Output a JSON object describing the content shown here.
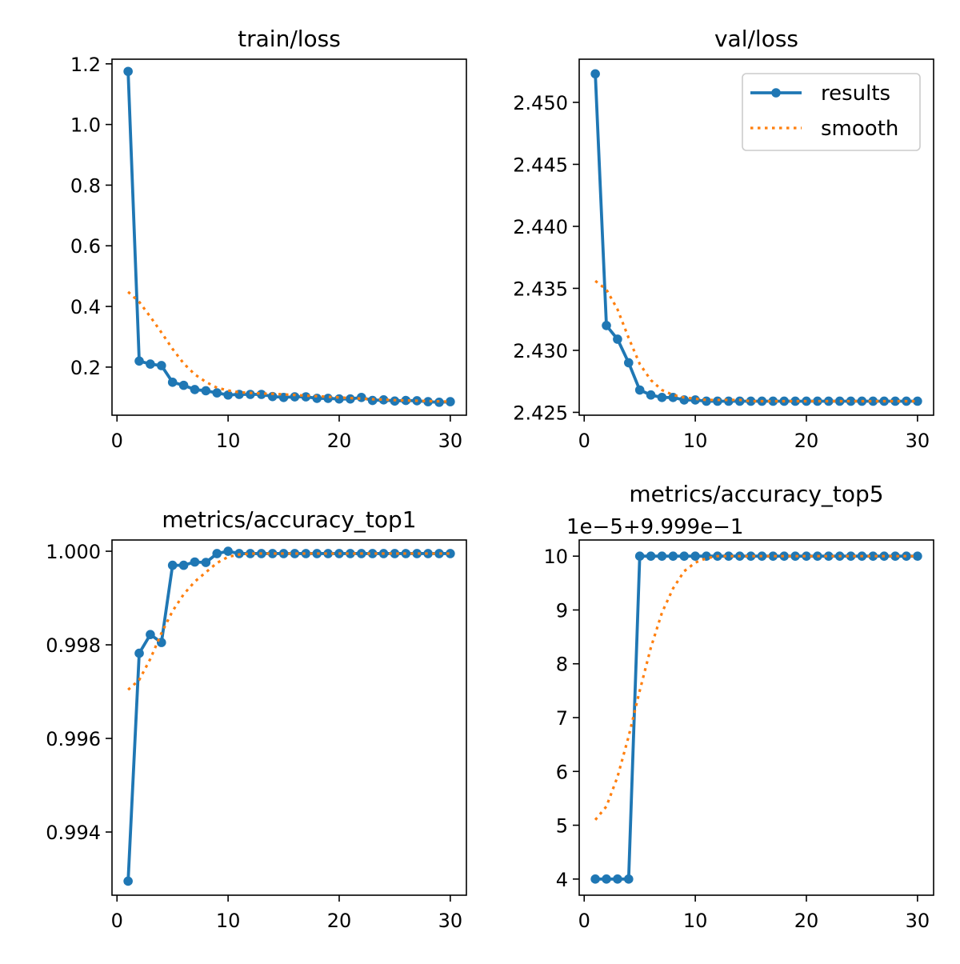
{
  "colors": {
    "results": "#1f77b4",
    "smooth": "#ff7f0e",
    "axes": "#000000",
    "background": "#ffffff"
  },
  "legend": {
    "placement": "upper-right",
    "entries": [
      "results",
      "smooth"
    ]
  },
  "chart_data": [
    {
      "type": "line",
      "title": "train/loss",
      "xlabel": "",
      "ylabel": "",
      "grid": false,
      "xlim": [
        -0.45,
        31.45
      ],
      "ylim": [
        0.0414,
        1.2153
      ],
      "xticks": [
        0,
        10,
        20,
        30
      ],
      "xtick_labels": [
        "0",
        "10",
        "20",
        "30"
      ],
      "yticks": [
        0.2,
        0.4,
        0.6,
        0.8,
        1.0,
        1.2
      ],
      "ytick_labels": [
        "0.2",
        "0.4",
        "0.6",
        "0.8",
        "1.0",
        "1.2"
      ],
      "offset_text": "",
      "x": [
        1,
        2,
        3,
        4,
        5,
        6,
        7,
        8,
        9,
        10,
        11,
        12,
        13,
        14,
        15,
        16,
        17,
        18,
        19,
        20,
        21,
        22,
        23,
        24,
        25,
        26,
        27,
        28,
        29,
        30
      ],
      "series": [
        {
          "name": "results",
          "style": "line-marker",
          "values": [
            1.175,
            0.22,
            0.21,
            0.205,
            0.15,
            0.14,
            0.126,
            0.122,
            0.115,
            0.108,
            0.11,
            0.11,
            0.11,
            0.103,
            0.1,
            0.102,
            0.102,
            0.097,
            0.097,
            0.095,
            0.095,
            0.1,
            0.09,
            0.092,
            0.088,
            0.09,
            0.089,
            0.086,
            0.084,
            0.086
          ]
        },
        {
          "name": "smooth",
          "style": "dotted",
          "values": [
            0.448,
            0.415,
            0.366,
            0.314,
            0.26,
            0.212,
            0.176,
            0.151,
            0.132,
            0.123,
            0.117,
            0.115,
            0.113,
            0.112,
            0.11,
            0.108,
            0.106,
            0.104,
            0.102,
            0.1,
            0.098,
            0.096,
            0.094,
            0.093,
            0.091,
            0.09,
            0.089,
            0.088,
            0.087,
            0.086
          ]
        }
      ]
    },
    {
      "type": "line",
      "title": "val/loss",
      "xlabel": "",
      "ylabel": "",
      "grid": false,
      "xlim": [
        -0.45,
        31.45
      ],
      "ylim": [
        2.42477,
        2.45348
      ],
      "xticks": [
        0,
        10,
        20,
        30
      ],
      "xtick_labels": [
        "0",
        "10",
        "20",
        "30"
      ],
      "yticks": [
        2.425,
        2.43,
        2.435,
        2.44,
        2.445,
        2.45
      ],
      "ytick_labels": [
        "2.425",
        "2.430",
        "2.435",
        "2.440",
        "2.445",
        "2.450"
      ],
      "offset_text": "",
      "x": [
        1,
        2,
        3,
        4,
        5,
        6,
        7,
        8,
        9,
        10,
        11,
        12,
        13,
        14,
        15,
        16,
        17,
        18,
        19,
        20,
        21,
        22,
        23,
        24,
        25,
        26,
        27,
        28,
        29,
        30
      ],
      "series": [
        {
          "name": "results",
          "style": "line-marker",
          "values": [
            2.4523,
            2.432,
            2.4309,
            2.429,
            2.4268,
            2.4264,
            2.4262,
            2.4262,
            2.426,
            2.426,
            2.4259,
            2.4259,
            2.4259,
            2.4259,
            2.4259,
            2.4259,
            2.4259,
            2.4259,
            2.4259,
            2.4259,
            2.4259,
            2.4259,
            2.4259,
            2.4259,
            2.4259,
            2.4259,
            2.4259,
            2.4259,
            2.4259,
            2.4259
          ]
        },
        {
          "name": "smooth",
          "style": "dotted",
          "values": [
            2.4356,
            2.4349,
            2.4333,
            2.431,
            2.4289,
            2.4276,
            2.4268,
            2.4264,
            2.4262,
            2.4261,
            2.426,
            2.426,
            2.426,
            2.426,
            2.4259,
            2.4259,
            2.4259,
            2.4259,
            2.4259,
            2.4259,
            2.4259,
            2.4259,
            2.4259,
            2.4259,
            2.4259,
            2.4259,
            2.4259,
            2.4259,
            2.4259,
            2.4259
          ]
        }
      ]
    },
    {
      "type": "line",
      "title": "metrics/accuracy_top1",
      "xlabel": "",
      "ylabel": "",
      "grid": false,
      "xlim": [
        -0.45,
        31.45
      ],
      "ylim": [
        0.99265,
        1.00024
      ],
      "xticks": [
        0,
        10,
        20,
        30
      ],
      "xtick_labels": [
        "0",
        "10",
        "20",
        "30"
      ],
      "yticks": [
        0.994,
        0.996,
        0.998,
        1.0
      ],
      "ytick_labels": [
        "0.994",
        "0.996",
        "0.998",
        "1.000"
      ],
      "offset_text": "",
      "x": [
        1,
        2,
        3,
        4,
        5,
        6,
        7,
        8,
        9,
        10,
        11,
        12,
        13,
        14,
        15,
        16,
        17,
        18,
        19,
        20,
        21,
        22,
        23,
        24,
        25,
        26,
        27,
        28,
        29,
        30
      ],
      "series": [
        {
          "name": "results",
          "style": "line-marker",
          "values": [
            0.99295,
            0.99782,
            0.99822,
            0.99805,
            0.9997,
            0.9997,
            0.99977,
            0.99976,
            0.99995,
            1.0,
            0.99995,
            0.99995,
            0.99995,
            0.99995,
            0.99995,
            0.99995,
            0.99995,
            0.99995,
            0.99995,
            0.99995,
            0.99995,
            0.99995,
            0.99995,
            0.99995,
            0.99995,
            0.99995,
            0.99995,
            0.99995,
            0.99995,
            0.99995
          ]
        },
        {
          "name": "smooth",
          "style": "dotted",
          "values": [
            0.99704,
            0.99725,
            0.9977,
            0.99825,
            0.99872,
            0.99908,
            0.99935,
            0.99955,
            0.99975,
            0.99988,
            0.99993,
            0.99995,
            0.99995,
            0.99995,
            0.99995,
            0.99995,
            0.99995,
            0.99995,
            0.99995,
            0.99995,
            0.99995,
            0.99995,
            0.99995,
            0.99995,
            0.99995,
            0.99995,
            0.99995,
            0.99995,
            0.99995,
            0.99995
          ]
        }
      ]
    },
    {
      "type": "line",
      "title": "metrics/accuracy_top5",
      "xlabel": "",
      "ylabel": "",
      "grid": false,
      "xlim": [
        -0.45,
        31.45
      ],
      "ylim": [
        3.7,
        10.3
      ],
      "xticks": [
        0,
        10,
        20,
        30
      ],
      "xtick_labels": [
        "0",
        "10",
        "20",
        "30"
      ],
      "yticks": [
        4,
        5,
        6,
        7,
        8,
        9,
        10
      ],
      "ytick_labels": [
        "4",
        "5",
        "6",
        "7",
        "8",
        "9",
        "10"
      ],
      "offset_text": "1e−5+9.999e−1",
      "x": [
        1,
        2,
        3,
        4,
        5,
        6,
        7,
        8,
        9,
        10,
        11,
        12,
        13,
        14,
        15,
        16,
        17,
        18,
        19,
        20,
        21,
        22,
        23,
        24,
        25,
        26,
        27,
        28,
        29,
        30
      ],
      "series": [
        {
          "name": "results",
          "style": "line-marker",
          "values": [
            4,
            4,
            4,
            4,
            10,
            10,
            10,
            10,
            10,
            10,
            10,
            10,
            10,
            10,
            10,
            10,
            10,
            10,
            10,
            10,
            10,
            10,
            10,
            10,
            10,
            10,
            10,
            10,
            10,
            10
          ]
        },
        {
          "name": "smooth",
          "style": "dotted",
          "values": [
            5.1,
            5.35,
            5.9,
            6.65,
            7.5,
            8.3,
            8.95,
            9.4,
            9.72,
            9.88,
            9.96,
            10,
            10,
            10,
            10,
            10,
            10,
            10,
            10,
            10,
            10,
            10,
            10,
            10,
            10,
            10,
            10,
            10,
            10,
            10
          ]
        }
      ]
    }
  ]
}
